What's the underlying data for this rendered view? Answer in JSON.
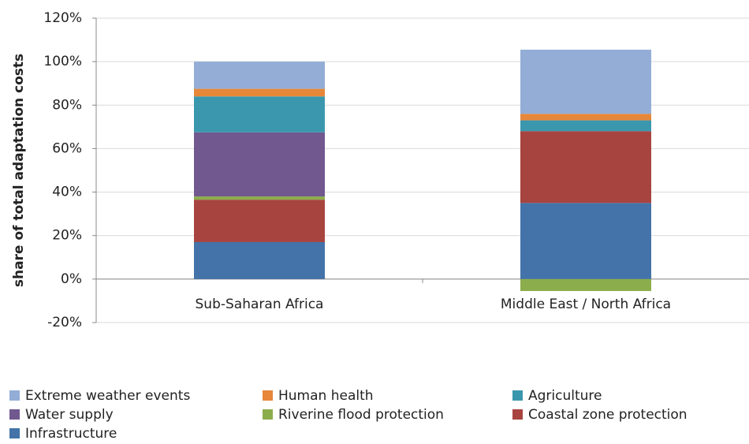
{
  "chart_data": {
    "type": "stacked_bar",
    "y_label": "share of total adaptation costs",
    "categories": [
      "Sub-Saharan Africa",
      "Middle East / North Africa"
    ],
    "series": [
      {
        "name": "Extreme weather events",
        "color": "#93add6",
        "values": [
          12.5,
          29.5
        ]
      },
      {
        "name": "Human health",
        "color": "#e6873a",
        "values": [
          3.5,
          3
        ]
      },
      {
        "name": "Agriculture",
        "color": "#3b97ae",
        "values": [
          16.5,
          5
        ]
      },
      {
        "name": "Water supply",
        "color": "#71588f",
        "values": [
          29.5,
          0
        ]
      },
      {
        "name": "Riverine flood protection",
        "color": "#8cad4c",
        "values": [
          1.5,
          -5.5
        ]
      },
      {
        "name": "Coastal zone protection",
        "color": "#a8443f",
        "values": [
          19.5,
          33
        ]
      },
      {
        "name": "Infrastructure",
        "color": "#4373a9",
        "values": [
          17,
          35
        ]
      }
    ],
    "ylim": [
      -20,
      120
    ],
    "yticks": [
      {
        "value": -20,
        "label": "-20%"
      },
      {
        "value": 0,
        "label": "0%"
      },
      {
        "value": 20,
        "label": "20%"
      },
      {
        "value": 40,
        "label": "40%"
      },
      {
        "value": 60,
        "label": "60%"
      },
      {
        "value": 80,
        "label": "80%"
      },
      {
        "value": 100,
        "label": "100%"
      },
      {
        "value": 120,
        "label": "120%"
      }
    ],
    "grid": true
  }
}
